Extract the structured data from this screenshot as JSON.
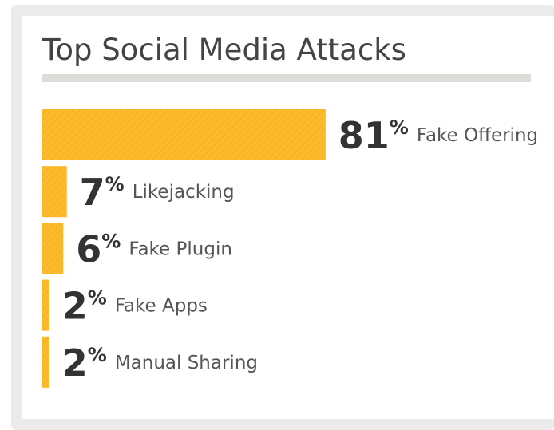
{
  "chart_data": {
    "type": "bar",
    "orientation": "horizontal",
    "title": "Top Social Media Attacks",
    "categories": [
      "Fake Offering",
      "Likejacking",
      "Fake Plugin",
      "Fake Apps",
      "Manual Sharing"
    ],
    "values": [
      81,
      7,
      6,
      2,
      2
    ],
    "value_labels": [
      "81%",
      "7%",
      "6%",
      "2%",
      "2%"
    ],
    "color": "#fbbb2a",
    "xlim": [
      0,
      100
    ]
  }
}
